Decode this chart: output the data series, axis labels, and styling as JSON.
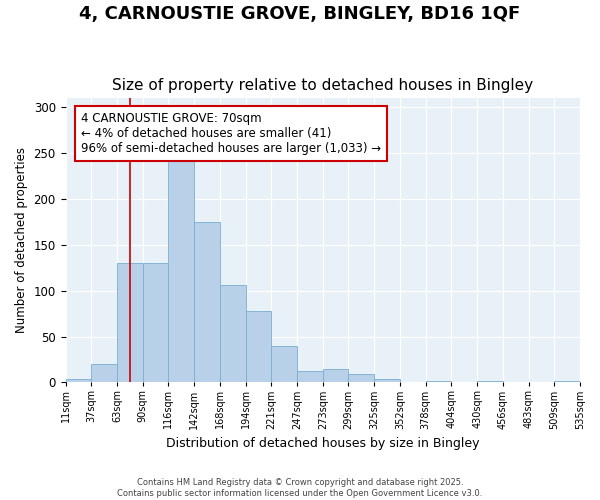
{
  "title": "4, CARNOUSTIE GROVE, BINGLEY, BD16 1QF",
  "subtitle": "Size of property relative to detached houses in Bingley",
  "xlabel": "Distribution of detached houses by size in Bingley",
  "ylabel": "Number of detached properties",
  "bar_heights": [
    4,
    20,
    130,
    130,
    253,
    175,
    106,
    78,
    40,
    12,
    15,
    9,
    4,
    0,
    1,
    0,
    2,
    0,
    0,
    2
  ],
  "x_tick_labels": [
    "11sqm",
    "37sqm",
    "63sqm",
    "90sqm",
    "116sqm",
    "142sqm",
    "168sqm",
    "194sqm",
    "221sqm",
    "247sqm",
    "273sqm",
    "299sqm",
    "325sqm",
    "352sqm",
    "378sqm",
    "404sqm",
    "430sqm",
    "456sqm",
    "483sqm",
    "509sqm",
    "535sqm"
  ],
  "bar_color": "#b8d0e8",
  "bar_edge_color": "#7aaed0",
  "red_line_x": 2.5,
  "annotation_text": "4 CARNOUSTIE GROVE: 70sqm\n← 4% of detached houses are smaller (41)\n96% of semi-detached houses are larger (1,033) →",
  "annotation_box_color": "#ffffff",
  "annotation_box_edge": "#cc0000",
  "ylim": [
    0,
    310
  ],
  "yticks": [
    0,
    50,
    100,
    150,
    200,
    250,
    300
  ],
  "bg_color": "#e8f0f8",
  "fig_bg_color": "#ffffff",
  "footer_text": "Contains HM Land Registry data © Crown copyright and database right 2025.\nContains public sector information licensed under the Open Government Licence v3.0.",
  "title_fontsize": 13,
  "subtitle_fontsize": 11,
  "annotation_fontsize": 8.5
}
